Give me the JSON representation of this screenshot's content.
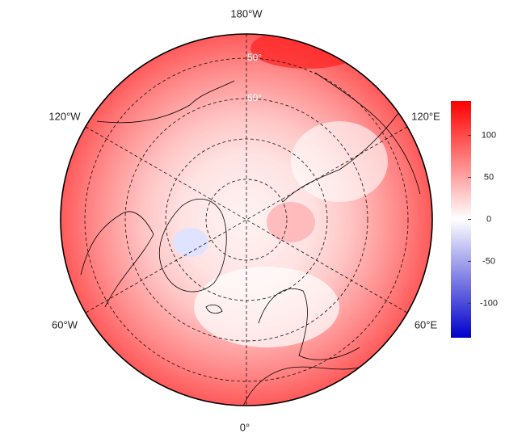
{
  "map": {
    "longitude_labels": {
      "top": "180°W",
      "upper_left": "120°W",
      "upper_right": "120°E",
      "lower_left": "60°W",
      "lower_right": "60°E",
      "bottom": "0°"
    },
    "latitude_labels": [
      "50°",
      "60°"
    ],
    "colorbar": {
      "range": [
        -141,
        141
      ],
      "ticks": [
        100,
        50,
        0,
        -50,
        -100
      ],
      "colors": [
        "#0000cc",
        "#ffffff",
        "#ff0000"
      ]
    }
  }
}
